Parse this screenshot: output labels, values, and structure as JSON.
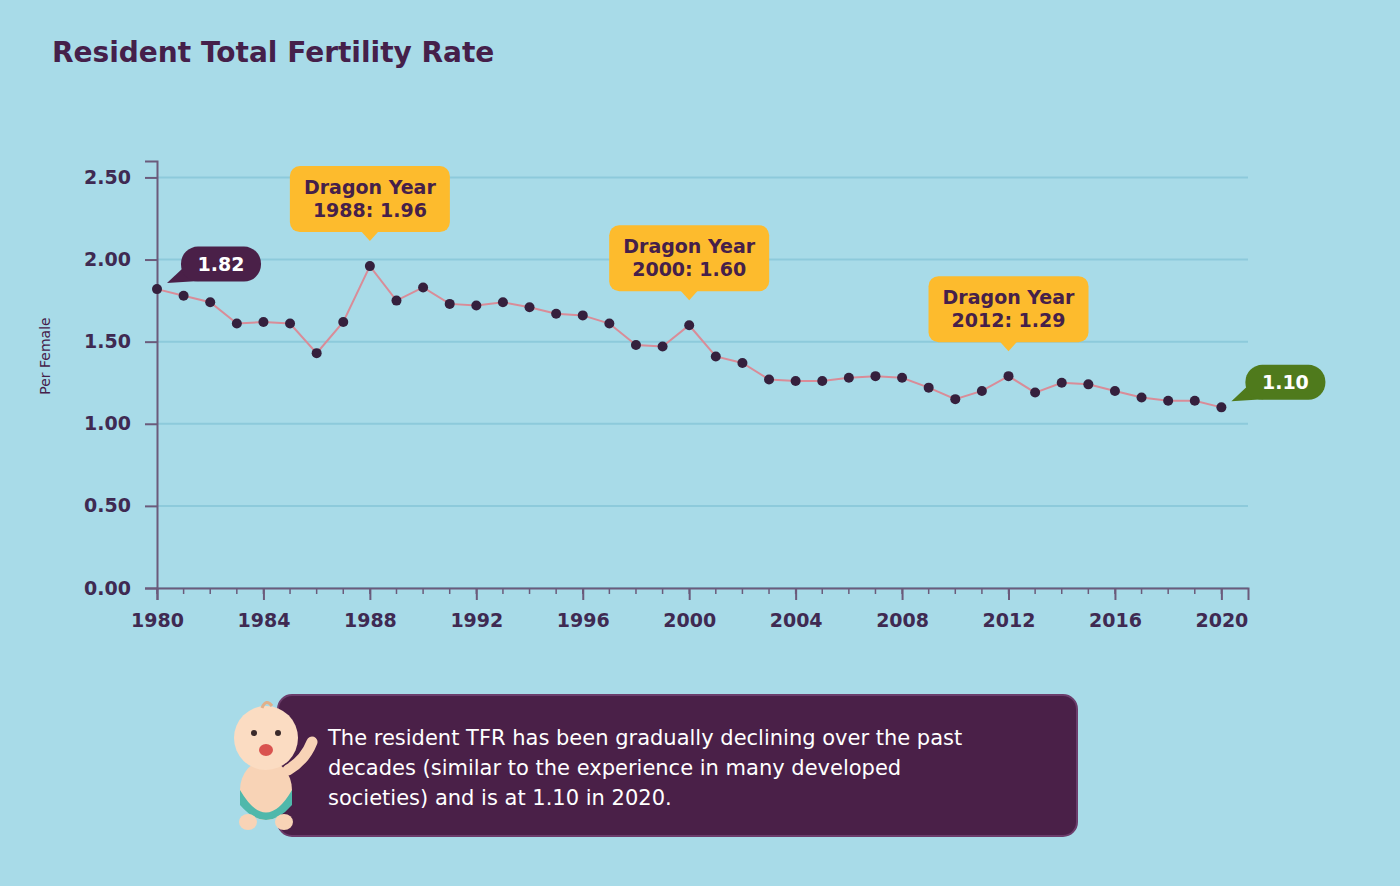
{
  "chart_data": {
    "type": "line",
    "title": "Resident Total Fertility Rate",
    "y_label": "Per Female",
    "x": [
      1980,
      1981,
      1982,
      1983,
      1984,
      1985,
      1986,
      1987,
      1988,
      1989,
      1990,
      1991,
      1992,
      1993,
      1994,
      1995,
      1996,
      1997,
      1998,
      1999,
      2000,
      2001,
      2002,
      2003,
      2004,
      2005,
      2006,
      2007,
      2008,
      2009,
      2010,
      2011,
      2012,
      2013,
      2014,
      2015,
      2016,
      2017,
      2018,
      2019,
      2020
    ],
    "values": [
      1.82,
      1.78,
      1.74,
      1.61,
      1.62,
      1.61,
      1.43,
      1.62,
      1.96,
      1.75,
      1.83,
      1.73,
      1.72,
      1.74,
      1.71,
      1.67,
      1.66,
      1.61,
      1.48,
      1.47,
      1.6,
      1.41,
      1.37,
      1.27,
      1.26,
      1.26,
      1.28,
      1.29,
      1.28,
      1.22,
      1.15,
      1.2,
      1.29,
      1.19,
      1.25,
      1.24,
      1.2,
      1.16,
      1.14,
      1.14,
      1.1
    ],
    "color": "#d98c98",
    "marker": "circle",
    "xlim": [
      1980,
      2021
    ],
    "xticks": [
      1980,
      1984,
      1988,
      1992,
      1996,
      2000,
      2004,
      2008,
      2012,
      2016,
      2020
    ],
    "ylim": [
      0,
      2.6
    ],
    "yticks": [
      {
        "value": 0,
        "label": "0.00"
      },
      {
        "value": 0.5,
        "label": "0.50"
      },
      {
        "value": 1,
        "label": "1.00"
      },
      {
        "value": 1.5,
        "label": "1.50"
      },
      {
        "value": 2,
        "label": "2.00"
      },
      {
        "value": 2.5,
        "label": "2.50"
      }
    ],
    "grid": true,
    "annotations": [
      {
        "text": [
          "1.82"
        ],
        "x": 1980,
        "y": 1.82,
        "position": "right",
        "color": "#4a2048"
      },
      {
        "text": [
          "Dragon Year",
          "1988: 1.96"
        ],
        "x": 1988,
        "y": 1.96,
        "position": "above",
        "color": "#fdbb2d"
      },
      {
        "text": [
          "Dragon Year",
          "2000: 1.60"
        ],
        "x": 2000,
        "y": 1.6,
        "position": "above",
        "color": "#fdbb2d"
      },
      {
        "text": [
          "Dragon Year",
          "2012: 1.29"
        ],
        "x": 2012,
        "y": 1.29,
        "position": "above",
        "color": "#fdbb2d"
      },
      {
        "text": [
          "1.10"
        ],
        "x": 2020,
        "y": 1.1,
        "position": "right",
        "color": "#4f7a1c"
      }
    ],
    "caption": [
      "The resident TFR has been gradually declining over the past",
      "decades (similar to the experience in many developed",
      "societies) and is at 1.10 in 2020."
    ]
  }
}
